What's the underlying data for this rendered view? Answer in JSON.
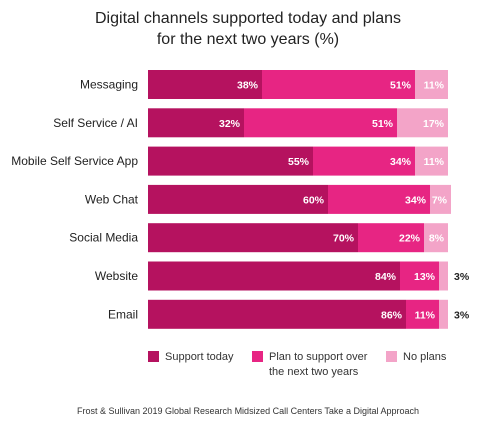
{
  "colors": {
    "support_today": "#b5125f",
    "plan_to_support": "#e72583",
    "no_plans": "#f3a4c8"
  },
  "chart_data": {
    "type": "bar",
    "orientation": "horizontal",
    "stacked": true,
    "title_lines": [
      "Digital channels supported today and plans",
      "for the next two years (%)"
    ],
    "categories": [
      "Messaging",
      "Self Service / AI",
      "Mobile Self Service App",
      "Web Chat",
      "Social Media",
      "Website",
      "Email"
    ],
    "series": [
      {
        "name": "Support today",
        "key": "support_today",
        "values": [
          38,
          32,
          55,
          60,
          70,
          84,
          86
        ],
        "labels": [
          "38%",
          "32%",
          "55%",
          "60%",
          "70%",
          "84%",
          "86%"
        ]
      },
      {
        "name": "Plan to support over the next two years",
        "key": "plan_to_support",
        "values": [
          51,
          51,
          34,
          34,
          22,
          13,
          11
        ],
        "labels": [
          "51%",
          "51%",
          "34%",
          "34%",
          "22%",
          "13%",
          "11%"
        ]
      },
      {
        "name": "No plans",
        "key": "no_plans",
        "values": [
          11,
          17,
          11,
          7,
          8,
          3,
          3
        ],
        "labels": [
          "11%",
          "17%",
          "11%",
          "7%",
          "8%",
          "3%",
          "3%"
        ]
      }
    ],
    "xlim": [
      0,
      100
    ],
    "grid": false,
    "legend_position": "bottom"
  },
  "legend": {
    "items": [
      {
        "line1": "Support today",
        "line2": ""
      },
      {
        "line1": "Plan to support over",
        "line2": "the next two years"
      },
      {
        "line1": "No plans",
        "line2": ""
      }
    ]
  },
  "source": "Frost & Sullivan 2019 Global Research Midsized Call Centers Take a Digital Approach"
}
